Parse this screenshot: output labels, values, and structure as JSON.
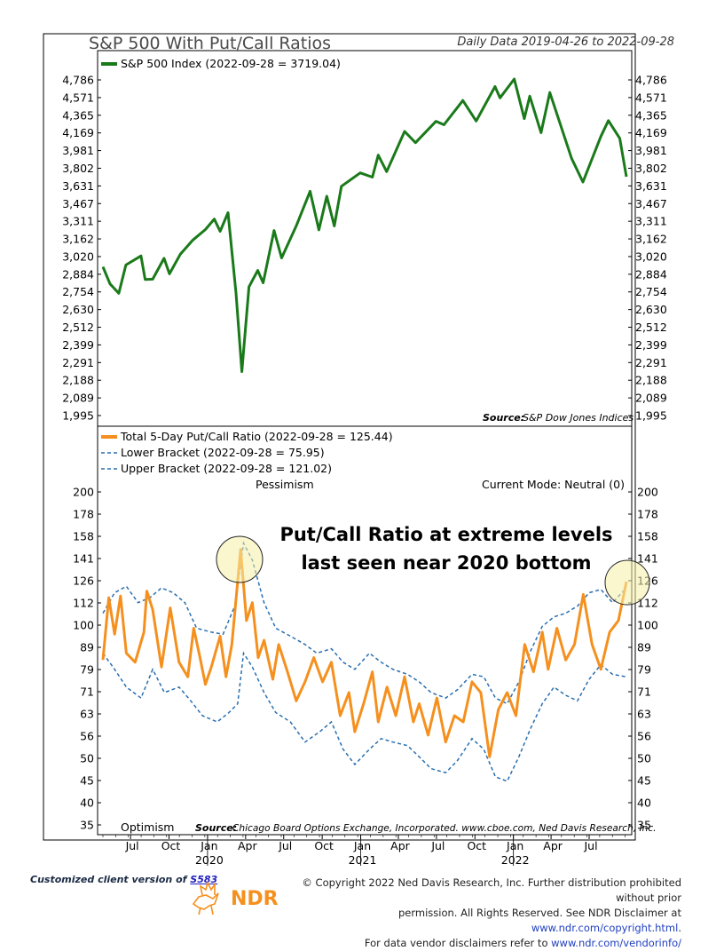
{
  "header": {
    "title": "S&P 500 With Put/Call Ratios",
    "date_range": "Daily Data 2019-04-26 to 2022-09-28"
  },
  "top_panel": {
    "legend": "S&P 500 Index (2022-09-28 = 3719.04)",
    "source_label": "Source:",
    "source_text": "S&P Dow Jones Indices",
    "y_ticks": [
      "4,786",
      "4,571",
      "4,365",
      "4,169",
      "3,981",
      "3,802",
      "3,631",
      "3,467",
      "3,311",
      "3,162",
      "3,020",
      "2,884",
      "2,754",
      "2,630",
      "2,512",
      "2,399",
      "2,291",
      "2,188",
      "2,089",
      "1,995"
    ]
  },
  "bottom_panel": {
    "legend_total": "Total 5-Day Put/Call Ratio (2022-09-28 = 125.44)",
    "legend_lower": "Lower Bracket (2022-09-28 = 75.95)",
    "legend_upper": "Upper Bracket (2022-09-28 = 121.02)",
    "pessimism": "Pessimism",
    "optimism": "Optimism",
    "mode": "Current Mode: Neutral (0)",
    "annotation_line1": "Put/Call Ratio at extreme levels",
    "annotation_line2": "last seen near 2020 bottom",
    "source_label": "Source:",
    "source_text": "Chicago Board Options Exchange, Incorporated. www.cboe.com, Ned Davis Research, Inc.",
    "y_ticks": [
      "200",
      "178",
      "158",
      "141",
      "126",
      "112",
      "100",
      "89",
      "79",
      "71",
      "63",
      "56",
      "50",
      "45",
      "40",
      "35"
    ]
  },
  "x_axis": {
    "months": [
      "Jul",
      "Oct",
      "Jan",
      "Apr",
      "Jul",
      "Oct",
      "Jan",
      "Apr",
      "Jul",
      "Oct",
      "Jan",
      "Apr",
      "Jul"
    ],
    "years": [
      "2020",
      "2021",
      "2022"
    ]
  },
  "footer": {
    "client_prefix": "Customized client version of ",
    "client_link": "S583",
    "logo_text": "NDR",
    "copyright_line1": "© Copyright 2022 Ned Davis Research, Inc. Further distribution prohibited without prior",
    "copyright_line2a": "permission. All Rights Reserved. See NDR Disclaimer at ",
    "copyright_link2": "www.ndr.com/copyright.html",
    "copyright_line2b": ".",
    "copyright_line3a": "For data vendor disclaimers refer to ",
    "copyright_link3": "www.ndr.com/vendorinfo/"
  },
  "chart_data": [
    {
      "type": "line",
      "title": "S&P 500 With Put/Call Ratios",
      "scale": "log",
      "ylim": [
        1995,
        4786
      ],
      "series": [
        {
          "name": "S&P 500 Index (2022-09-28 = 3719.04)",
          "color": "#1a7a1a",
          "points": [
            [
              "2019-04-26",
              2940
            ],
            [
              "2019-05-13",
              2812
            ],
            [
              "2019-06-03",
              2744
            ],
            [
              "2019-06-20",
              2954
            ],
            [
              "2019-07-26",
              3025
            ],
            [
              "2019-08-05",
              2844
            ],
            [
              "2019-08-23",
              2847
            ],
            [
              "2019-09-19",
              3006
            ],
            [
              "2019-10-02",
              2887
            ],
            [
              "2019-10-28",
              3039
            ],
            [
              "2019-11-27",
              3153
            ],
            [
              "2019-12-27",
              3240
            ],
            [
              "2020-01-17",
              3330
            ],
            [
              "2020-01-31",
              3225
            ],
            [
              "2020-02-19",
              3386
            ],
            [
              "2020-03-09",
              2746
            ],
            [
              "2020-03-23",
              2237
            ],
            [
              "2020-04-09",
              2790
            ],
            [
              "2020-04-30",
              2912
            ],
            [
              "2020-05-13",
              2820
            ],
            [
              "2020-06-08",
              3232
            ],
            [
              "2020-06-26",
              3009
            ],
            [
              "2020-07-31",
              3271
            ],
            [
              "2020-09-02",
              3580
            ],
            [
              "2020-09-23",
              3237
            ],
            [
              "2020-10-12",
              3534
            ],
            [
              "2020-10-30",
              3270
            ],
            [
              "2020-11-16",
              3627
            ],
            [
              "2020-12-31",
              3756
            ],
            [
              "2021-01-29",
              3714
            ],
            [
              "2021-02-12",
              3934
            ],
            [
              "2021-03-04",
              3768
            ],
            [
              "2021-04-16",
              4185
            ],
            [
              "2021-05-12",
              4063
            ],
            [
              "2021-06-30",
              4297
            ],
            [
              "2021-07-19",
              4258
            ],
            [
              "2021-08-31",
              4523
            ],
            [
              "2021-09-02",
              4537
            ],
            [
              "2021-10-04",
              4300
            ],
            [
              "2021-11-18",
              4704
            ],
            [
              "2021-11-30",
              4567
            ],
            [
              "2022-01-03",
              4797
            ],
            [
              "2022-01-27",
              4327
            ],
            [
              "2022-02-09",
              4587
            ],
            [
              "2022-03-08",
              4171
            ],
            [
              "2022-03-29",
              4631
            ],
            [
              "2022-05-20",
              3901
            ],
            [
              "2022-06-16",
              3667
            ],
            [
              "2022-07-29",
              4130
            ],
            [
              "2022-08-16",
              4305
            ],
            [
              "2022-09-12",
              4110
            ],
            [
              "2022-09-28",
              3719
            ]
          ]
        }
      ],
      "source": "S&P Dow Jones Indices"
    },
    {
      "type": "line",
      "scale": "log",
      "ylim": [
        35,
        200
      ],
      "series": [
        {
          "name": "Total 5-Day Put/Call Ratio (2022-09-28 = 125.44)",
          "color": "#f5901e",
          "points": [
            [
              "2019-04-26",
              83
            ],
            [
              "2019-05-10",
              115
            ],
            [
              "2019-05-24",
              95
            ],
            [
              "2019-06-07",
              116
            ],
            [
              "2019-06-21",
              86
            ],
            [
              "2019-07-12",
              82
            ],
            [
              "2019-08-02",
              96
            ],
            [
              "2019-08-09",
              119
            ],
            [
              "2019-08-23",
              108
            ],
            [
              "2019-09-13",
              80
            ],
            [
              "2019-10-04",
              109
            ],
            [
              "2019-10-25",
              82
            ],
            [
              "2019-11-15",
              76
            ],
            [
              "2019-11-29",
              98
            ],
            [
              "2019-12-13",
              85
            ],
            [
              "2019-12-27",
              73
            ],
            [
              "2020-01-10",
              80
            ],
            [
              "2020-01-31",
              94
            ],
            [
              "2020-02-14",
              76
            ],
            [
              "2020-02-28",
              90
            ],
            [
              "2020-03-20",
              148
            ],
            [
              "2020-04-03",
              102
            ],
            [
              "2020-04-17",
              112
            ],
            [
              "2020-05-01",
              84
            ],
            [
              "2020-05-15",
              92
            ],
            [
              "2020-06-05",
              75
            ],
            [
              "2020-06-19",
              90
            ],
            [
              "2020-07-10",
              78
            ],
            [
              "2020-07-31",
              67
            ],
            [
              "2020-08-21",
              74
            ],
            [
              "2020-09-11",
              84
            ],
            [
              "2020-10-02",
              74
            ],
            [
              "2020-10-23",
              82
            ],
            [
              "2020-11-13",
              62
            ],
            [
              "2020-12-04",
              70
            ],
            [
              "2020-12-18",
              57
            ],
            [
              "2021-01-08",
              66
            ],
            [
              "2021-01-29",
              78
            ],
            [
              "2021-02-12",
              60
            ],
            [
              "2021-03-05",
              72
            ],
            [
              "2021-03-26",
              62
            ],
            [
              "2021-04-16",
              76
            ],
            [
              "2021-05-07",
              60
            ],
            [
              "2021-05-21",
              66
            ],
            [
              "2021-06-11",
              56
            ],
            [
              "2021-07-02",
              68
            ],
            [
              "2021-07-23",
              54
            ],
            [
              "2021-08-13",
              62
            ],
            [
              "2021-09-03",
              60
            ],
            [
              "2021-09-24",
              74
            ],
            [
              "2021-10-15",
              70
            ],
            [
              "2021-11-05",
              50
            ],
            [
              "2021-11-26",
              64
            ],
            [
              "2021-12-17",
              70
            ],
            [
              "2022-01-07",
              62
            ],
            [
              "2022-01-28",
              90
            ],
            [
              "2022-02-18",
              78
            ],
            [
              "2022-03-11",
              96
            ],
            [
              "2022-03-25",
              79
            ],
            [
              "2022-04-15",
              98
            ],
            [
              "2022-05-06",
              83
            ],
            [
              "2022-05-27",
              90
            ],
            [
              "2022-06-17",
              117
            ],
            [
              "2022-07-08",
              90
            ],
            [
              "2022-07-29",
              79
            ],
            [
              "2022-08-19",
              96
            ],
            [
              "2022-09-09",
              102
            ],
            [
              "2022-09-28",
              125
            ]
          ]
        },
        {
          "name": "Lower Bracket (2022-09-28 = 75.95)",
          "color": "#2a6fb0",
          "points": [
            [
              "2019-04-26",
              86
            ],
            [
              "2019-05-24",
              79
            ],
            [
              "2019-06-21",
              72
            ],
            [
              "2019-07-26",
              68
            ],
            [
              "2019-08-23",
              79
            ],
            [
              "2019-09-20",
              70
            ],
            [
              "2019-10-25",
              72
            ],
            [
              "2019-11-22",
              67
            ],
            [
              "2019-12-20",
              62
            ],
            [
              "2020-01-24",
              60
            ],
            [
              "2020-02-21",
              63
            ],
            [
              "2020-03-13",
              66
            ],
            [
              "2020-03-27",
              86
            ],
            [
              "2020-04-17",
              80
            ],
            [
              "2020-05-15",
              70
            ],
            [
              "2020-06-12",
              63
            ],
            [
              "2020-07-17",
              60
            ],
            [
              "2020-08-21",
              54
            ],
            [
              "2020-09-25",
              57
            ],
            [
              "2020-10-23",
              60
            ],
            [
              "2020-11-20",
              52
            ],
            [
              "2020-12-18",
              48
            ],
            [
              "2021-01-22",
              52
            ],
            [
              "2021-02-19",
              55
            ],
            [
              "2021-03-19",
              54
            ],
            [
              "2021-04-23",
              53
            ],
            [
              "2021-05-21",
              50
            ],
            [
              "2021-06-18",
              47
            ],
            [
              "2021-07-23",
              46
            ],
            [
              "2021-08-20",
              49
            ],
            [
              "2021-09-24",
              55
            ],
            [
              "2021-10-22",
              52
            ],
            [
              "2021-11-19",
              45
            ],
            [
              "2021-12-17",
              44
            ],
            [
              "2022-01-14",
              50
            ],
            [
              "2022-02-11",
              58
            ],
            [
              "2022-03-11",
              66
            ],
            [
              "2022-04-08",
              72
            ],
            [
              "2022-05-06",
              69
            ],
            [
              "2022-06-03",
              67
            ],
            [
              "2022-07-01",
              75
            ],
            [
              "2022-07-29",
              81
            ],
            [
              "2022-08-26",
              77
            ],
            [
              "2022-09-28",
              76
            ]
          ]
        },
        {
          "name": "Upper Bracket (2022-09-28 = 121.02)",
          "color": "#2a6fb0",
          "points": [
            [
              "2019-04-26",
              106
            ],
            [
              "2019-05-24",
              118
            ],
            [
              "2019-06-21",
              122
            ],
            [
              "2019-07-19",
              112
            ],
            [
              "2019-08-16",
              115
            ],
            [
              "2019-09-13",
              121
            ],
            [
              "2019-10-11",
              118
            ],
            [
              "2019-11-08",
              112
            ],
            [
              "2019-12-06",
              98
            ],
            [
              "2020-01-10",
              96
            ],
            [
              "2020-02-07",
              95
            ],
            [
              "2020-03-06",
              110
            ],
            [
              "2020-03-27",
              153
            ],
            [
              "2020-04-17",
              140
            ],
            [
              "2020-05-15",
              112
            ],
            [
              "2020-06-12",
              98
            ],
            [
              "2020-07-17",
              94
            ],
            [
              "2020-08-21",
              90
            ],
            [
              "2020-09-18",
              86
            ],
            [
              "2020-10-23",
              88
            ],
            [
              "2020-11-20",
              82
            ],
            [
              "2020-12-18",
              79
            ],
            [
              "2021-01-22",
              86
            ],
            [
              "2021-02-19",
              82
            ],
            [
              "2021-03-19",
              79
            ],
            [
              "2021-04-23",
              77
            ],
            [
              "2021-05-21",
              74
            ],
            [
              "2021-06-18",
              70
            ],
            [
              "2021-07-23",
              68
            ],
            [
              "2021-08-20",
              71
            ],
            [
              "2021-09-24",
              77
            ],
            [
              "2021-10-22",
              76
            ],
            [
              "2021-11-19",
              68
            ],
            [
              "2021-12-17",
              66
            ],
            [
              "2022-01-14",
              74
            ],
            [
              "2022-02-11",
              87
            ],
            [
              "2022-03-11",
              99
            ],
            [
              "2022-04-08",
              104
            ],
            [
              "2022-05-06",
              106
            ],
            [
              "2022-06-03",
              110
            ],
            [
              "2022-07-01",
              118
            ],
            [
              "2022-07-29",
              120
            ],
            [
              "2022-08-26",
              112
            ],
            [
              "2022-09-28",
              121
            ]
          ]
        }
      ],
      "source": "Chicago Board Options Exchange, Incorporated. www.cboe.com, Ned Davis Research, Inc."
    }
  ]
}
